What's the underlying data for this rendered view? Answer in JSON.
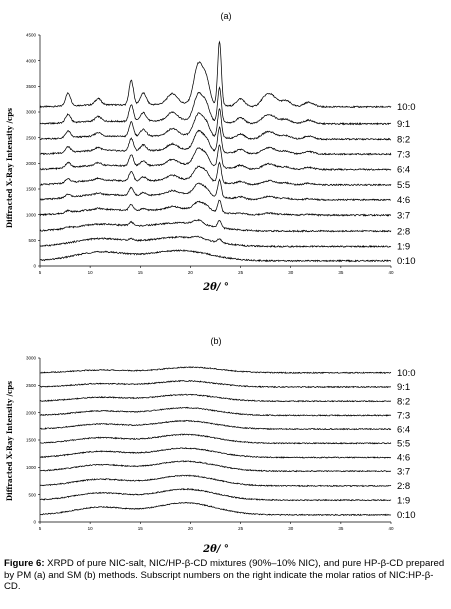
{
  "charts": [
    {
      "panel": "(a)",
      "type": "line",
      "xlabel": "2θ/ °",
      "ylabel": "Diffracted X-Ray Intensity /cps",
      "xlim": [
        5,
        40
      ],
      "ylim": [
        0,
        4500
      ],
      "xticks": [
        5,
        10,
        15,
        20,
        25,
        30,
        35,
        40
      ],
      "yticks": [
        0,
        500,
        1000,
        1500,
        2000,
        2500,
        3000,
        3500,
        4000,
        4500
      ],
      "series": [
        {
          "name": "10:0",
          "offset": 3100,
          "halo": [
            [
              11,
              40
            ],
            [
              19,
              60
            ]
          ],
          "peaks": [
            [
              7.8,
              250,
              0.25
            ],
            [
              10.8,
              120,
              0.3
            ],
            [
              14.1,
              480,
              0.22
            ],
            [
              15.3,
              230,
              0.3
            ],
            [
              18.2,
              200,
              0.5
            ],
            [
              20.8,
              780,
              0.45
            ],
            [
              21.6,
              420,
              0.35
            ],
            [
              22.9,
              1250,
              0.18
            ],
            [
              25.0,
              150,
              0.4
            ],
            [
              27.5,
              170,
              0.5
            ],
            [
              28.2,
              160,
              0.5
            ],
            [
              29.5,
              120,
              0.5
            ],
            [
              31.8,
              90,
              0.5
            ]
          ]
        },
        {
          "name": "9:1",
          "offset": 2770,
          "halo": [
            [
              11,
              50
            ],
            [
              19,
              70
            ]
          ],
          "peaks": [
            [
              7.8,
              160,
              0.25
            ],
            [
              10.8,
              90,
              0.3
            ],
            [
              14.1,
              330,
              0.22
            ],
            [
              15.3,
              170,
              0.3
            ],
            [
              18.2,
              160,
              0.5
            ],
            [
              20.8,
              520,
              0.45
            ],
            [
              21.6,
              280,
              0.35
            ],
            [
              22.9,
              680,
              0.18
            ],
            [
              25.0,
              110,
              0.4
            ],
            [
              27.5,
              120,
              0.5
            ],
            [
              28.2,
              110,
              0.5
            ],
            [
              29.5,
              90,
              0.5
            ],
            [
              31.8,
              70,
              0.5
            ]
          ]
        },
        {
          "name": "8:2",
          "offset": 2470,
          "halo": [
            [
              11,
              60
            ],
            [
              19,
              80
            ]
          ],
          "peaks": [
            [
              7.8,
              130,
              0.25
            ],
            [
              10.8,
              70,
              0.3
            ],
            [
              14.1,
              280,
              0.22
            ],
            [
              15.3,
              140,
              0.3
            ],
            [
              18.2,
              130,
              0.5
            ],
            [
              20.8,
              420,
              0.45
            ],
            [
              21.6,
              220,
              0.35
            ],
            [
              22.9,
              560,
              0.18
            ],
            [
              25.0,
              90,
              0.4
            ],
            [
              27.5,
              100,
              0.5
            ],
            [
              28.2,
              90,
              0.5
            ],
            [
              29.5,
              70,
              0.5
            ],
            [
              31.8,
              60,
              0.5
            ]
          ]
        },
        {
          "name": "7:3",
          "offset": 2180,
          "halo": [
            [
              11,
              70
            ],
            [
              19,
              90
            ]
          ],
          "peaks": [
            [
              7.8,
              110,
              0.25
            ],
            [
              10.8,
              60,
              0.3
            ],
            [
              14.1,
              250,
              0.22
            ],
            [
              15.3,
              120,
              0.3
            ],
            [
              18.2,
              110,
              0.5
            ],
            [
              20.8,
              360,
              0.45
            ],
            [
              21.6,
              190,
              0.35
            ],
            [
              22.9,
              480,
              0.18
            ],
            [
              25.0,
              80,
              0.4
            ],
            [
              27.5,
              80,
              0.5
            ],
            [
              28.2,
              80,
              0.5
            ],
            [
              29.5,
              60,
              0.5
            ],
            [
              31.8,
              50,
              0.5
            ]
          ]
        },
        {
          "name": "6:4",
          "offset": 1880,
          "halo": [
            [
              11,
              80
            ],
            [
              19,
              100
            ]
          ],
          "peaks": [
            [
              7.8,
              100,
              0.25
            ],
            [
              10.8,
              50,
              0.3
            ],
            [
              14.1,
              220,
              0.22
            ],
            [
              15.3,
              100,
              0.3
            ],
            [
              18.2,
              100,
              0.5
            ],
            [
              20.8,
              320,
              0.45
            ],
            [
              21.6,
              170,
              0.35
            ],
            [
              22.9,
              440,
              0.18
            ],
            [
              25.0,
              70,
              0.4
            ],
            [
              27.5,
              70,
              0.5
            ],
            [
              28.2,
              70,
              0.5
            ],
            [
              29.5,
              50,
              0.5
            ],
            [
              31.8,
              40,
              0.5
            ]
          ]
        },
        {
          "name": "5:5",
          "offset": 1580,
          "halo": [
            [
              11,
              90
            ],
            [
              19,
              110
            ]
          ],
          "peaks": [
            [
              7.8,
              80,
              0.25
            ],
            [
              10.8,
              40,
              0.3
            ],
            [
              14.1,
              190,
              0.22
            ],
            [
              15.3,
              80,
              0.3
            ],
            [
              18.2,
              80,
              0.5
            ],
            [
              20.8,
              260,
              0.45
            ],
            [
              21.6,
              140,
              0.35
            ],
            [
              22.9,
              390,
              0.18
            ],
            [
              25.0,
              50,
              0.4
            ],
            [
              27.5,
              50,
              0.5
            ],
            [
              28.2,
              50,
              0.5
            ],
            [
              29.5,
              40,
              0.5
            ],
            [
              31.8,
              30,
              0.5
            ]
          ]
        },
        {
          "name": "4:6",
          "offset": 1290,
          "halo": [
            [
              11,
              100
            ],
            [
              19,
              120
            ]
          ],
          "peaks": [
            [
              7.8,
              60,
              0.25
            ],
            [
              10.8,
              30,
              0.3
            ],
            [
              14.1,
              160,
              0.22
            ],
            [
              15.3,
              60,
              0.3
            ],
            [
              18.2,
              60,
              0.5
            ],
            [
              20.8,
              210,
              0.45
            ],
            [
              21.6,
              110,
              0.35
            ],
            [
              22.9,
              330,
              0.18
            ],
            [
              25.0,
              40,
              0.4
            ],
            [
              27.5,
              40,
              0.5
            ],
            [
              28.2,
              40,
              0.5
            ],
            [
              29.5,
              30,
              0.5
            ],
            [
              31.8,
              20,
              0.5
            ]
          ]
        },
        {
          "name": "3:7",
          "offset": 990,
          "halo": [
            [
              11,
              110
            ],
            [
              19,
              130
            ]
          ],
          "peaks": [
            [
              7.8,
              40,
              0.25
            ],
            [
              10.8,
              20,
              0.3
            ],
            [
              14.1,
              120,
              0.22
            ],
            [
              15.3,
              40,
              0.3
            ],
            [
              18.2,
              40,
              0.5
            ],
            [
              20.8,
              150,
              0.45
            ],
            [
              21.6,
              80,
              0.35
            ],
            [
              22.9,
              240,
              0.18
            ],
            [
              25.0,
              25,
              0.4
            ],
            [
              27.5,
              25,
              0.5
            ],
            [
              28.2,
              25,
              0.5
            ],
            [
              29.5,
              20,
              0.5
            ],
            [
              31.8,
              15,
              0.5
            ]
          ]
        },
        {
          "name": "2:8",
          "offset": 680,
          "halo": [
            [
              11,
              130
            ],
            [
              19,
              160
            ]
          ],
          "peaks": [
            [
              7.8,
              20,
              0.25
            ],
            [
              14.1,
              70,
              0.22
            ],
            [
              20.8,
              80,
              0.45
            ],
            [
              22.9,
              140,
              0.18
            ]
          ]
        },
        {
          "name": "1:9",
          "offset": 380,
          "halo": [
            [
              11,
              150
            ],
            [
              19,
              180
            ]
          ],
          "peaks": [
            [
              14.1,
              35,
              0.22
            ],
            [
              20.8,
              40,
              0.45
            ],
            [
              22.9,
              70,
              0.18
            ]
          ]
        },
        {
          "name": "0:10",
          "offset": 100,
          "halo": [
            [
              11,
              170
            ],
            [
              19,
              200
            ]
          ],
          "peaks": []
        }
      ]
    },
    {
      "panel": "(b)",
      "type": "line",
      "xlabel": "2θ/ °",
      "ylabel": "Diffracted X-Ray Intensity /cps",
      "xlim": [
        5,
        40
      ],
      "ylim": [
        0,
        3000
      ],
      "xticks": [
        5,
        10,
        15,
        20,
        25,
        30,
        35,
        40
      ],
      "yticks": [
        0,
        500,
        1000,
        1500,
        2000,
        2500,
        3000
      ],
      "series": [
        {
          "name": "10:0",
          "offset": 2730,
          "halo": [
            [
              11,
              50
            ],
            [
              20,
              100
            ]
          ]
        },
        {
          "name": "9:1",
          "offset": 2470,
          "halo": [
            [
              11,
              60
            ],
            [
              19.5,
              110
            ]
          ]
        },
        {
          "name": "8:2",
          "offset": 2210,
          "halo": [
            [
              11,
              70
            ],
            [
              19.5,
              120
            ]
          ]
        },
        {
          "name": "7:3",
          "offset": 1950,
          "halo": [
            [
              11,
              80
            ],
            [
              19.5,
              140
            ]
          ]
        },
        {
          "name": "6:4",
          "offset": 1700,
          "halo": [
            [
              11,
              90
            ],
            [
              19.5,
              150
            ]
          ]
        },
        {
          "name": "5:5",
          "offset": 1440,
          "halo": [
            [
              11,
              100
            ],
            [
              19.5,
              160
            ]
          ]
        },
        {
          "name": "4:6",
          "offset": 1180,
          "halo": [
            [
              11,
              110
            ],
            [
              19.5,
              170
            ]
          ]
        },
        {
          "name": "3:7",
          "offset": 930,
          "halo": [
            [
              11,
              115
            ],
            [
              19.5,
              180
            ]
          ]
        },
        {
          "name": "2:8",
          "offset": 660,
          "halo": [
            [
              11,
              120
            ],
            [
              19.5,
              190
            ]
          ]
        },
        {
          "name": "1:9",
          "offset": 400,
          "halo": [
            [
              11,
              130
            ],
            [
              19.5,
              200
            ]
          ]
        },
        {
          "name": "0:10",
          "offset": 130,
          "halo": [
            [
              11,
              140
            ],
            [
              19.5,
              220
            ]
          ]
        }
      ]
    }
  ],
  "caption": {
    "label": "Figure 6:",
    "text": " XRPD of pure NIC-salt, NIC/HP-β-CD mixtures (90%–10% NIC), and pure HP-β-CD prepared by PM (a) and SM (b) methods. Subscript numbers on the right indicate the molar ratios of NIC:HP-β-CD."
  }
}
